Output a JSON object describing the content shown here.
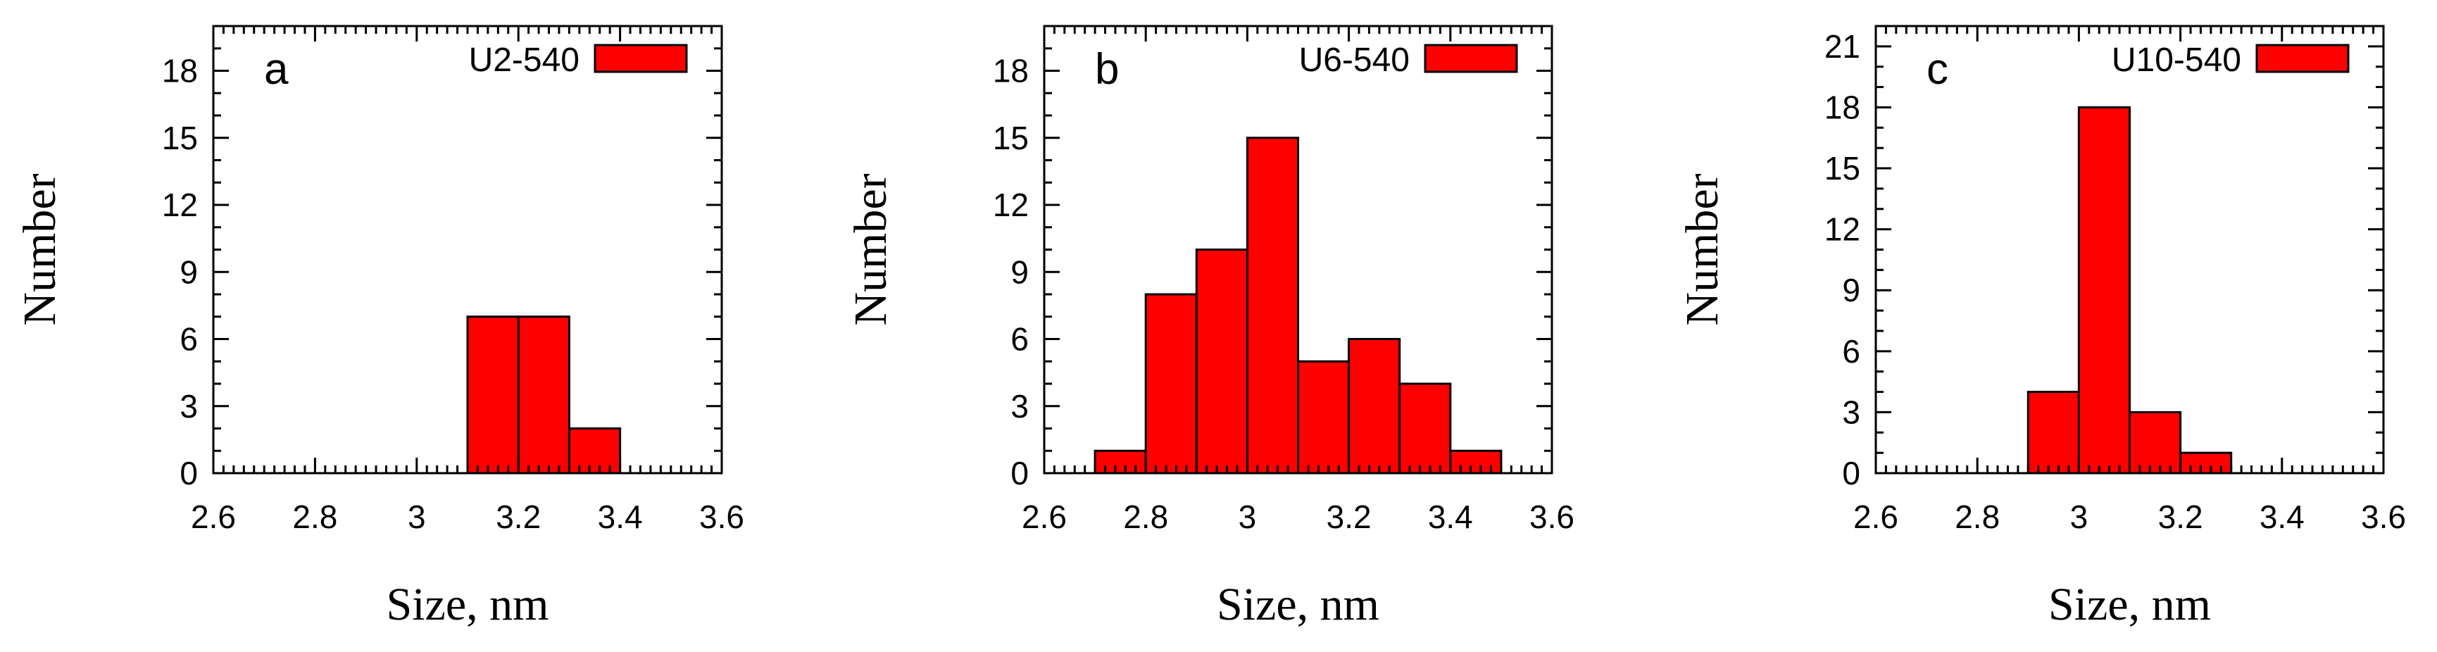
{
  "chart_data": [
    {
      "type": "bar",
      "panel_label": "a",
      "legend": "U2-540",
      "xlabel": "Size, nm",
      "ylabel": "Number",
      "xlim": [
        2.6,
        3.6
      ],
      "ylim": [
        0,
        20
      ],
      "xticks": [
        "2.6",
        "2.8",
        "3",
        "3.2",
        "3.4",
        "3.6"
      ],
      "yticks": [
        "0",
        "3",
        "6",
        "9",
        "12",
        "15",
        "18"
      ],
      "bin_width": 0.1,
      "bins": [
        {
          "x": 3.1,
          "value": 7
        },
        {
          "x": 3.2,
          "value": 7
        },
        {
          "x": 3.3,
          "value": 2
        }
      ],
      "bar_color": "#ff0000"
    },
    {
      "type": "bar",
      "panel_label": "b",
      "legend": "U6-540",
      "xlabel": "Size, nm",
      "ylabel": "Number",
      "xlim": [
        2.6,
        3.6
      ],
      "ylim": [
        0,
        20
      ],
      "xticks": [
        "2.6",
        "2.8",
        "3",
        "3.2",
        "3.4",
        "3.6"
      ],
      "yticks": [
        "0",
        "3",
        "6",
        "9",
        "12",
        "15",
        "18"
      ],
      "bin_width": 0.1,
      "bins": [
        {
          "x": 2.7,
          "value": 1
        },
        {
          "x": 2.8,
          "value": 8
        },
        {
          "x": 2.9,
          "value": 10
        },
        {
          "x": 3.0,
          "value": 15
        },
        {
          "x": 3.1,
          "value": 5
        },
        {
          "x": 3.2,
          "value": 6
        },
        {
          "x": 3.3,
          "value": 4
        },
        {
          "x": 3.4,
          "value": 1
        }
      ],
      "bar_color": "#ff0000"
    },
    {
      "type": "bar",
      "panel_label": "c",
      "legend": "U10-540",
      "xlabel": "Size, nm",
      "ylabel": "Number",
      "xlim": [
        2.6,
        3.6
      ],
      "ylim": [
        0,
        22
      ],
      "xticks": [
        "2.6",
        "2.8",
        "3",
        "3.2",
        "3.4",
        "3.6"
      ],
      "yticks": [
        "0",
        "3",
        "6",
        "9",
        "12",
        "15",
        "18",
        "21"
      ],
      "bin_width": 0.1,
      "bins": [
        {
          "x": 2.9,
          "value": 4
        },
        {
          "x": 3.0,
          "value": 18
        },
        {
          "x": 3.1,
          "value": 3
        },
        {
          "x": 3.2,
          "value": 1
        }
      ],
      "bar_color": "#ff0000"
    }
  ]
}
